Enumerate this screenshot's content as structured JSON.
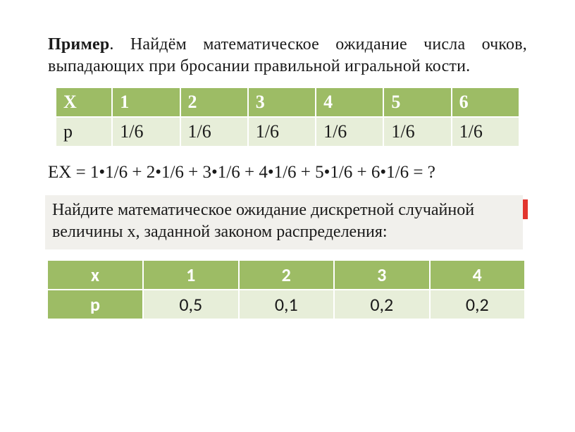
{
  "colors": {
    "accent": "#9dbc65",
    "row_bg": "#e7eed9",
    "task_bg": "#f1f0ec",
    "stripe": "#e2352e",
    "text": "#1a1a1a",
    "white": "#ffffff"
  },
  "intro": {
    "bold": "Пример",
    "rest": ". Найдём математическое ожидание числа очков, выпадающих при бросании правильной игральной кости."
  },
  "table1": {
    "row_labels": [
      "X",
      "p"
    ],
    "cols": [
      "1",
      "2",
      "3",
      "4",
      "5",
      "6"
    ],
    "prow": [
      "1/6",
      "1/6",
      "1/6",
      "1/6",
      "1/6",
      "1/6"
    ],
    "header_bg": "#9dbc65",
    "cell_bg": "#e7eed9",
    "fontsize": 26
  },
  "equation": "EX = 1•1/6  + 2•1/6  + 3•1/6 + 4•1/6 + 5•1/6 + 6•1/6 = ?",
  "task_text": "Найдите математическое ожидание дискретной случайной величины х, заданной законом распределения:",
  "table2": {
    "header": [
      "x",
      "1",
      "2",
      "3",
      "4"
    ],
    "row": {
      "label": "p",
      "values": [
        "0,5",
        "0,1",
        "0,2",
        "0,2"
      ]
    },
    "header_bg": "#9dbc65",
    "cell_bg": "#e7eed9",
    "fontsize": 26
  }
}
